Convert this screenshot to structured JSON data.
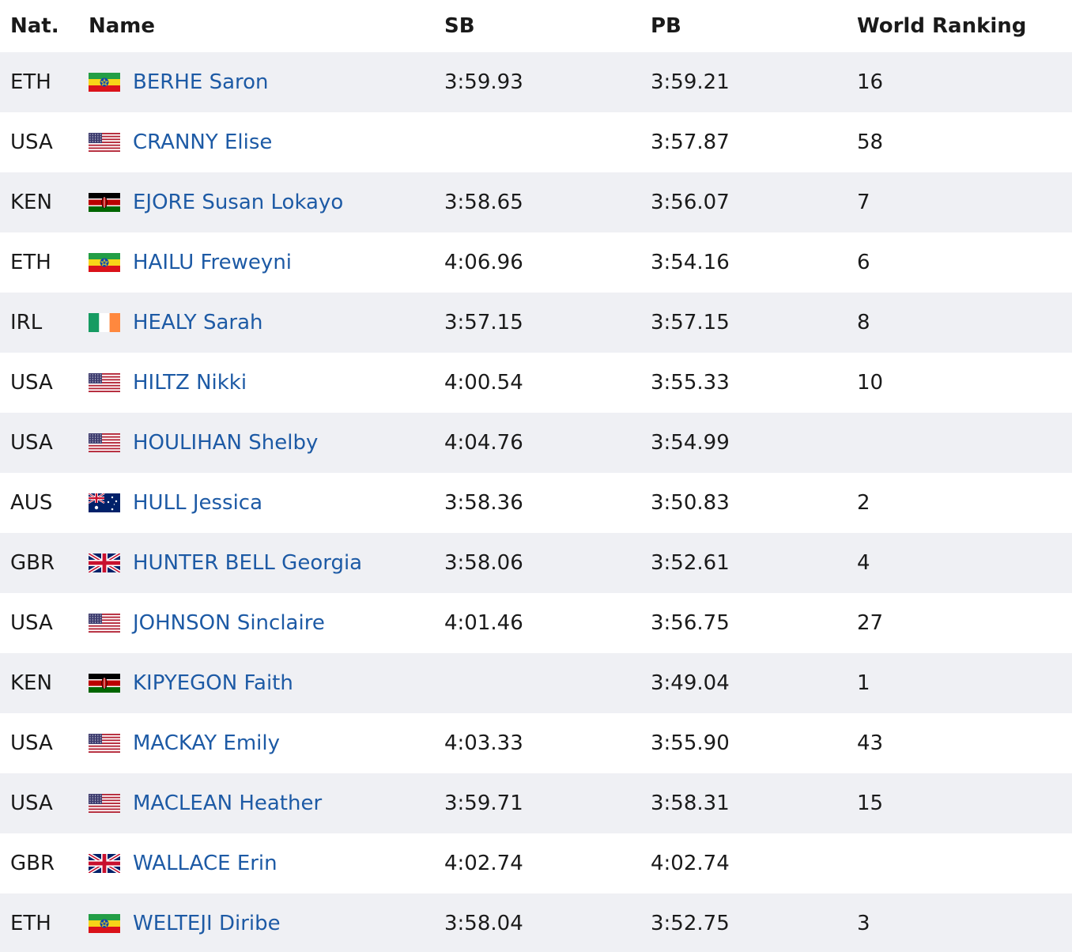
{
  "headers": {
    "nat": "Nat.",
    "name": "Name",
    "sb": "SB",
    "pb": "PB",
    "wr": "World Ranking"
  },
  "colors": {
    "link": "#1d5aa5",
    "shaded_row": "#eff0f4"
  },
  "rows": [
    {
      "nat": "ETH",
      "flag": "ethiopia-flag",
      "name": "BERHE Saron",
      "sb": "3:59.93",
      "pb": "3:59.21",
      "wr": "16"
    },
    {
      "nat": "USA",
      "flag": "usa-flag",
      "name": "CRANNY Elise",
      "sb": "",
      "pb": "3:57.87",
      "wr": "58"
    },
    {
      "nat": "KEN",
      "flag": "kenya-flag",
      "name": "EJORE Susan Lokayo",
      "sb": "3:58.65",
      "pb": "3:56.07",
      "wr": "7"
    },
    {
      "nat": "ETH",
      "flag": "ethiopia-flag",
      "name": "HAILU Freweyni",
      "sb": "4:06.96",
      "pb": "3:54.16",
      "wr": "6"
    },
    {
      "nat": "IRL",
      "flag": "ireland-flag",
      "name": "HEALY Sarah",
      "sb": "3:57.15",
      "pb": "3:57.15",
      "wr": "8"
    },
    {
      "nat": "USA",
      "flag": "usa-flag",
      "name": "HILTZ Nikki",
      "sb": "4:00.54",
      "pb": "3:55.33",
      "wr": "10"
    },
    {
      "nat": "USA",
      "flag": "usa-flag",
      "name": "HOULIHAN Shelby",
      "sb": "4:04.76",
      "pb": "3:54.99",
      "wr": ""
    },
    {
      "nat": "AUS",
      "flag": "australia-flag",
      "name": "HULL Jessica",
      "sb": "3:58.36",
      "pb": "3:50.83",
      "wr": "2"
    },
    {
      "nat": "GBR",
      "flag": "uk-flag",
      "name": "HUNTER BELL Georgia",
      "sb": "3:58.06",
      "pb": "3:52.61",
      "wr": "4"
    },
    {
      "nat": "USA",
      "flag": "usa-flag",
      "name": "JOHNSON Sinclaire",
      "sb": "4:01.46",
      "pb": "3:56.75",
      "wr": "27"
    },
    {
      "nat": "KEN",
      "flag": "kenya-flag",
      "name": "KIPYEGON Faith",
      "sb": "",
      "pb": "3:49.04",
      "wr": "1"
    },
    {
      "nat": "USA",
      "flag": "usa-flag",
      "name": "MACKAY Emily",
      "sb": "4:03.33",
      "pb": "3:55.90",
      "wr": "43"
    },
    {
      "nat": "USA",
      "flag": "usa-flag",
      "name": "MACLEAN Heather",
      "sb": "3:59.71",
      "pb": "3:58.31",
      "wr": "15"
    },
    {
      "nat": "GBR",
      "flag": "uk-flag",
      "name": "WALLACE Erin",
      "sb": "4:02.74",
      "pb": "4:02.74",
      "wr": ""
    },
    {
      "nat": "ETH",
      "flag": "ethiopia-flag",
      "name": "WELTEJI Diribe",
      "sb": "3:58.04",
      "pb": "3:52.75",
      "wr": "3"
    }
  ]
}
